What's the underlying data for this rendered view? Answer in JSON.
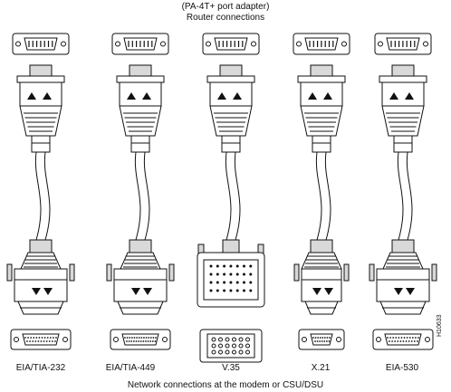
{
  "title_line1": "(PA-4T+ port adapter)",
  "title_line2": "Router connections",
  "caption": "Network connections at the modem or CSU/DSU",
  "figure_id": "H10633",
  "cables": [
    {
      "label": "EIA/TIA-232",
      "connector": "db25"
    },
    {
      "label": "EIA/TIA-449",
      "connector": "db37"
    },
    {
      "label": "V.35",
      "connector": "v35"
    },
    {
      "label": "X.21",
      "connector": "db15"
    },
    {
      "label": "EIA-530",
      "connector": "db25"
    }
  ]
}
